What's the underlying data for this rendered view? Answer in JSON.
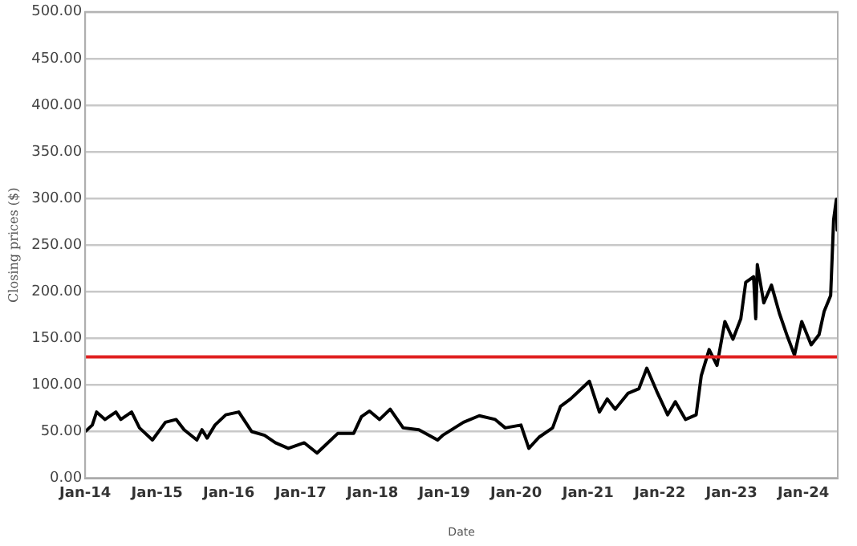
{
  "chart_data": {
    "type": "line",
    "xlabel": "Date",
    "ylabel": "Closing prices ($)",
    "x": [
      "2014-01-01",
      "2014-02-06",
      "2014-02-28",
      "2014-04-12",
      "2014-06-06",
      "2014-07-01",
      "2014-08-25",
      "2014-10-04",
      "2014-12-09",
      "2015-02-13",
      "2015-04-09",
      "2015-05-19",
      "2015-07-23",
      "2015-08-18",
      "2015-09-13",
      "2015-10-23",
      "2015-12-17",
      "2016-02-21",
      "2016-04-27",
      "2016-07-01",
      "2016-08-25",
      "2016-10-30",
      "2017-01-19",
      "2017-03-25",
      "2017-05-19",
      "2017-07-08",
      "2017-09-27",
      "2017-11-06",
      "2017-12-17",
      "2018-02-06",
      "2018-04-01",
      "2018-06-06",
      "2018-08-25",
      "2018-11-28",
      "2018-12-24",
      "2019-04-09",
      "2019-06-28",
      "2019-09-17",
      "2019-11-07",
      "2020-01-26",
      "2020-03-06",
      "2020-04-27",
      "2020-07-05",
      "2020-08-14",
      "2020-10-04",
      "2020-11-14",
      "2021-01-08",
      "2021-02-28",
      "2021-04-09",
      "2021-05-19",
      "2021-07-23",
      "2021-09-17",
      "2021-10-27",
      "2021-12-17",
      "2022-02-10",
      "2022-03-21",
      "2022-05-12",
      "2022-07-05",
      "2022-07-31",
      "2022-09-09",
      "2022-10-19",
      "2022-11-28",
      "2023-01-08",
      "2023-02-17",
      "2023-03-14",
      "2023-04-23",
      "2023-05-04",
      "2023-05-12",
      "2023-06-14",
      "2023-07-23",
      "2023-09-01",
      "2023-10-12",
      "2023-11-17",
      "2023-12-24",
      "2024-02-10",
      "2024-03-21",
      "2024-04-16",
      "2024-05-19",
      "2024-06-03",
      "2024-06-17",
      "2024-06-21"
    ],
    "series": [
      {
        "color": "#000000",
        "values": [
          50,
          57,
          71,
          63,
          71,
          63,
          71,
          54,
          41,
          60,
          63,
          52,
          41,
          52,
          43,
          57,
          68,
          71,
          50,
          46,
          38,
          32,
          38,
          27,
          38,
          48,
          48,
          66,
          72,
          63,
          74,
          54,
          52,
          41,
          46,
          60,
          67,
          63,
          54,
          57,
          32,
          44,
          54,
          77,
          85,
          93,
          104,
          71,
          85,
          74,
          91,
          96,
          118,
          93,
          68,
          82,
          63,
          68,
          110,
          138,
          121,
          168,
          149,
          171,
          210,
          216,
          171,
          229,
          188,
          207,
          177,
          152,
          132,
          168,
          143,
          154,
          179,
          196,
          277,
          299,
          266
        ]
      }
    ],
    "xlim": [
      "2014-01-01",
      "2024-06-24"
    ],
    "xticks": [
      {
        "value": "2014-01-01",
        "label": "Jan-14"
      },
      {
        "value": "2015-01-01",
        "label": "Jan-15"
      },
      {
        "value": "2016-01-01",
        "label": "Jan-16"
      },
      {
        "value": "2017-01-01",
        "label": "Jan-17"
      },
      {
        "value": "2018-01-01",
        "label": "Jan-18"
      },
      {
        "value": "2019-01-01",
        "label": "Jan-19"
      },
      {
        "value": "2020-01-01",
        "label": "Jan-20"
      },
      {
        "value": "2021-01-01",
        "label": "Jan-21"
      },
      {
        "value": "2022-01-01",
        "label": "Jan-22"
      },
      {
        "value": "2023-01-01",
        "label": "Jan-23"
      },
      {
        "value": "2024-01-01",
        "label": "Jan-24"
      }
    ],
    "ylim": [
      0,
      500
    ],
    "yticks": [
      {
        "value": 0,
        "label": "0.00"
      },
      {
        "value": 50,
        "label": "50.00"
      },
      {
        "value": 100,
        "label": "100.00"
      },
      {
        "value": 150,
        "label": "150.00"
      },
      {
        "value": 200,
        "label": "200.00"
      },
      {
        "value": 250,
        "label": "250.00"
      },
      {
        "value": 300,
        "label": "300.00"
      },
      {
        "value": 350,
        "label": "350.00"
      },
      {
        "value": 400,
        "label": "400.00"
      },
      {
        "value": 450,
        "label": "450.00"
      },
      {
        "value": 500,
        "label": "500.00"
      }
    ],
    "ref_lines": [
      {
        "axis": "y",
        "value": 130,
        "color": "#e02020"
      }
    ],
    "grid": "y",
    "legend": false,
    "marker": "none",
    "line_style": "solid"
  }
}
